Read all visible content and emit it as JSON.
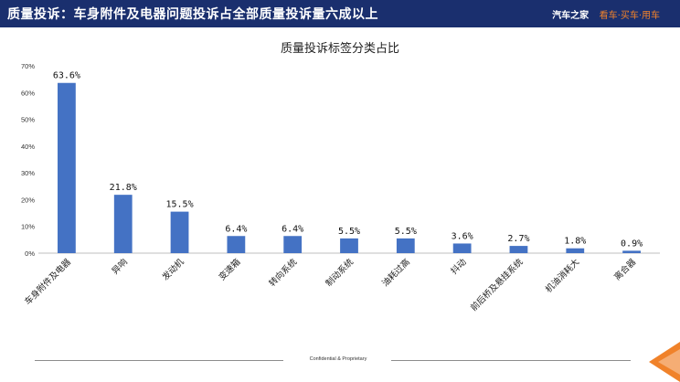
{
  "header": {
    "title": "质量投诉：车身附件及电器问题投诉占全部质量投诉量六成以上",
    "brand_name": "汽车之家",
    "brand_slogan": "看车·买车·用车"
  },
  "footer": {
    "text": "Confidential & Proprietary"
  },
  "colors": {
    "header_bg": "#1a2f6e",
    "bar": "#4472c4",
    "accent": "#f0822a"
  },
  "chart_data": {
    "type": "bar",
    "title": "质量投诉标签分类占比",
    "categories": [
      "车身附件及电器",
      "异响",
      "发动机",
      "变速箱",
      "转向系统",
      "制动系统",
      "油耗过高",
      "抖动",
      "前后桥及悬挂系统",
      "机油消耗大",
      "离合器"
    ],
    "values": [
      63.6,
      21.8,
      15.5,
      6.4,
      6.4,
      5.5,
      5.5,
      3.6,
      2.7,
      1.8,
      0.9
    ],
    "value_labels": [
      "63.6%",
      "21.8%",
      "15.5%",
      "6.4%",
      "6.4%",
      "5.5%",
      "5.5%",
      "3.6%",
      "2.7%",
      "1.8%",
      "0.9%"
    ],
    "yticks": [
      "0%",
      "10%",
      "20%",
      "30%",
      "40%",
      "50%",
      "60%",
      "70%"
    ],
    "ylim": [
      0,
      70
    ],
    "xlabel": "",
    "ylabel": "",
    "grid": false,
    "legend": "none"
  }
}
